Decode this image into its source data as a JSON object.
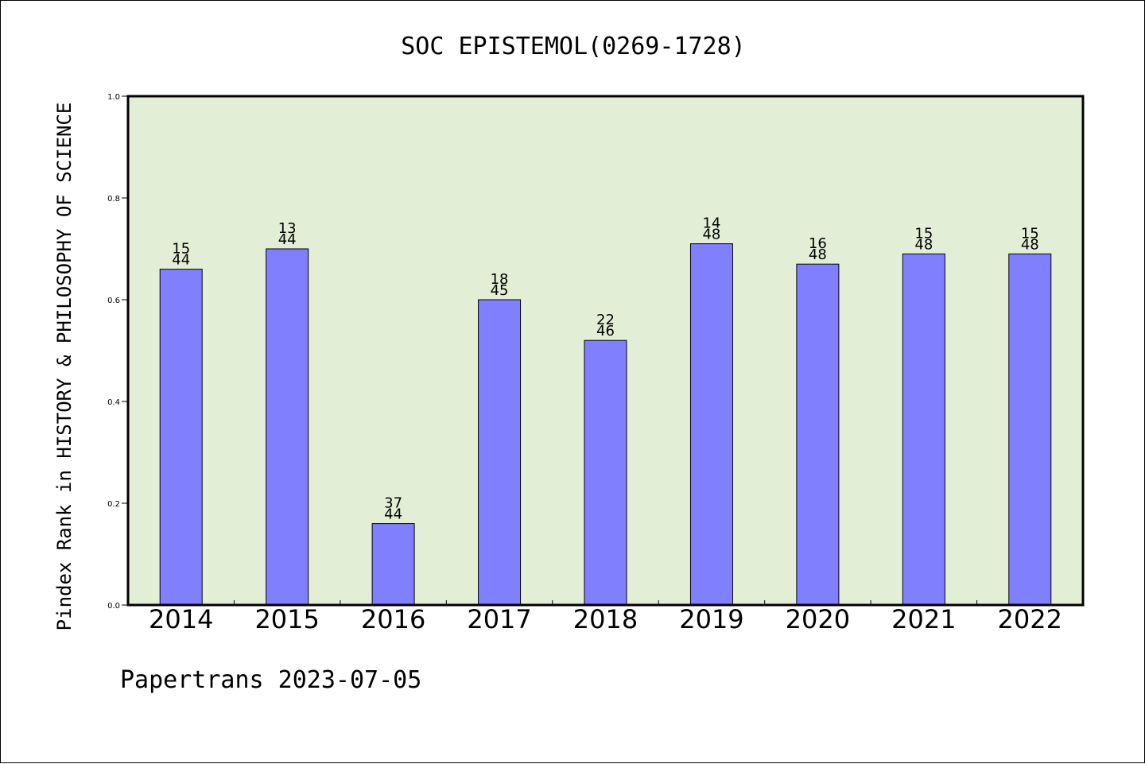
{
  "chart_data": {
    "type": "bar",
    "title": "SOC EPISTEMOL(0269-1728)",
    "ylabel": "Pindex Rank in HISTORY & PHILOSOPHY OF SCIENCE",
    "xlabel": "",
    "footer": "Papertrans 2023-07-05",
    "ylim": [
      0,
      1.0
    ],
    "yticks": [
      "0.0",
      "0.2",
      "0.4",
      "0.6",
      "0.8",
      "1.0"
    ],
    "categories": [
      "2014",
      "2015",
      "2016",
      "2017",
      "2018",
      "2019",
      "2020",
      "2021",
      "2022"
    ],
    "values": [
      0.66,
      0.7,
      0.16,
      0.6,
      0.52,
      0.71,
      0.67,
      0.69,
      0.69
    ],
    "rank": [
      "15",
      "13",
      "37",
      "18",
      "22",
      "14",
      "16",
      "15",
      "15"
    ],
    "total": [
      "44",
      "44",
      "44",
      "45",
      "46",
      "48",
      "48",
      "48",
      "48"
    ],
    "grid": false,
    "colors": {
      "plot_background": "#e2efd6",
      "bar_fill": "#8080ff",
      "bar_stroke": "#000000",
      "axis": "#000000"
    }
  }
}
